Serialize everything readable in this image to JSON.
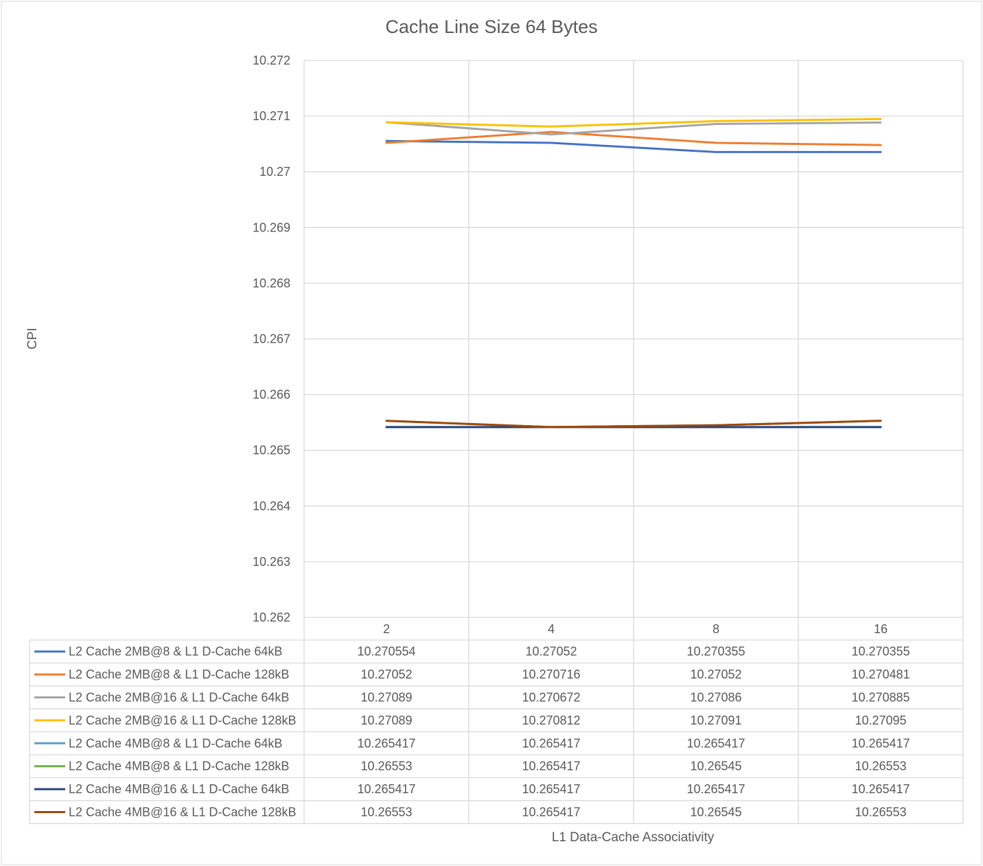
{
  "chart_data": {
    "type": "line",
    "title": "Cache Line Size 64 Bytes",
    "xlabel": "L1 Data-Cache Associativity",
    "ylabel": "CPI",
    "categories": [
      "2",
      "4",
      "8",
      "16"
    ],
    "ylim": [
      10.262,
      10.272
    ],
    "yticks": [
      "10.262",
      "10.263",
      "10.264",
      "10.265",
      "10.266",
      "10.267",
      "10.268",
      "10.269",
      "10.27",
      "10.271",
      "10.272"
    ],
    "grid": true,
    "legend": "data-table",
    "series": [
      {
        "name": "L2 Cache 2MB@8 & L1 D-Cache 64kB",
        "color": "#4472C4",
        "values": [
          10.270554,
          10.27052,
          10.270355,
          10.270355
        ],
        "labels": [
          "10.270554",
          "10.27052",
          "10.270355",
          "10.270355"
        ]
      },
      {
        "name": "L2 Cache 2MB@8 & L1 D-Cache 128kB",
        "color": "#ED7D31",
        "values": [
          10.27052,
          10.270716,
          10.27052,
          10.270481
        ],
        "labels": [
          "10.27052",
          "10.270716",
          "10.27052",
          "10.270481"
        ]
      },
      {
        "name": "L2 Cache 2MB@16 & L1 D-Cache 64kB",
        "color": "#A5A5A5",
        "values": [
          10.27089,
          10.270672,
          10.27086,
          10.270885
        ],
        "labels": [
          "10.27089",
          "10.270672",
          "10.27086",
          "10.270885"
        ]
      },
      {
        "name": "L2 Cache 2MB@16 & L1 D-Cache 128kB",
        "color": "#FFC000",
        "values": [
          10.27089,
          10.270812,
          10.27091,
          10.27095
        ],
        "labels": [
          "10.27089",
          "10.270812",
          "10.27091",
          "10.27095"
        ]
      },
      {
        "name": "L2 Cache 4MB@8 & L1 D-Cache 64kB",
        "color": "#5B9BD5",
        "values": [
          10.265417,
          10.265417,
          10.265417,
          10.265417
        ],
        "labels": [
          "10.265417",
          "10.265417",
          "10.265417",
          "10.265417"
        ]
      },
      {
        "name": "L2 Cache 4MB@8 & L1 D-Cache 128kB",
        "color": "#70AD47",
        "values": [
          10.26553,
          10.265417,
          10.26545,
          10.26553
        ],
        "labels": [
          "10.26553",
          "10.265417",
          "10.26545",
          "10.26553"
        ]
      },
      {
        "name": "L2 Cache 4MB@16 & L1 D-Cache 64kB",
        "color": "#264478",
        "values": [
          10.265417,
          10.265417,
          10.265417,
          10.265417
        ],
        "labels": [
          "10.265417",
          "10.265417",
          "10.265417",
          "10.265417"
        ]
      },
      {
        "name": "L2 Cache 4MB@16 & L1 D-Cache 128kB",
        "color": "#9E480E",
        "values": [
          10.26553,
          10.265417,
          10.26545,
          10.26553
        ],
        "labels": [
          "10.26553",
          "10.265417",
          "10.26545",
          "10.26553"
        ]
      }
    ]
  }
}
